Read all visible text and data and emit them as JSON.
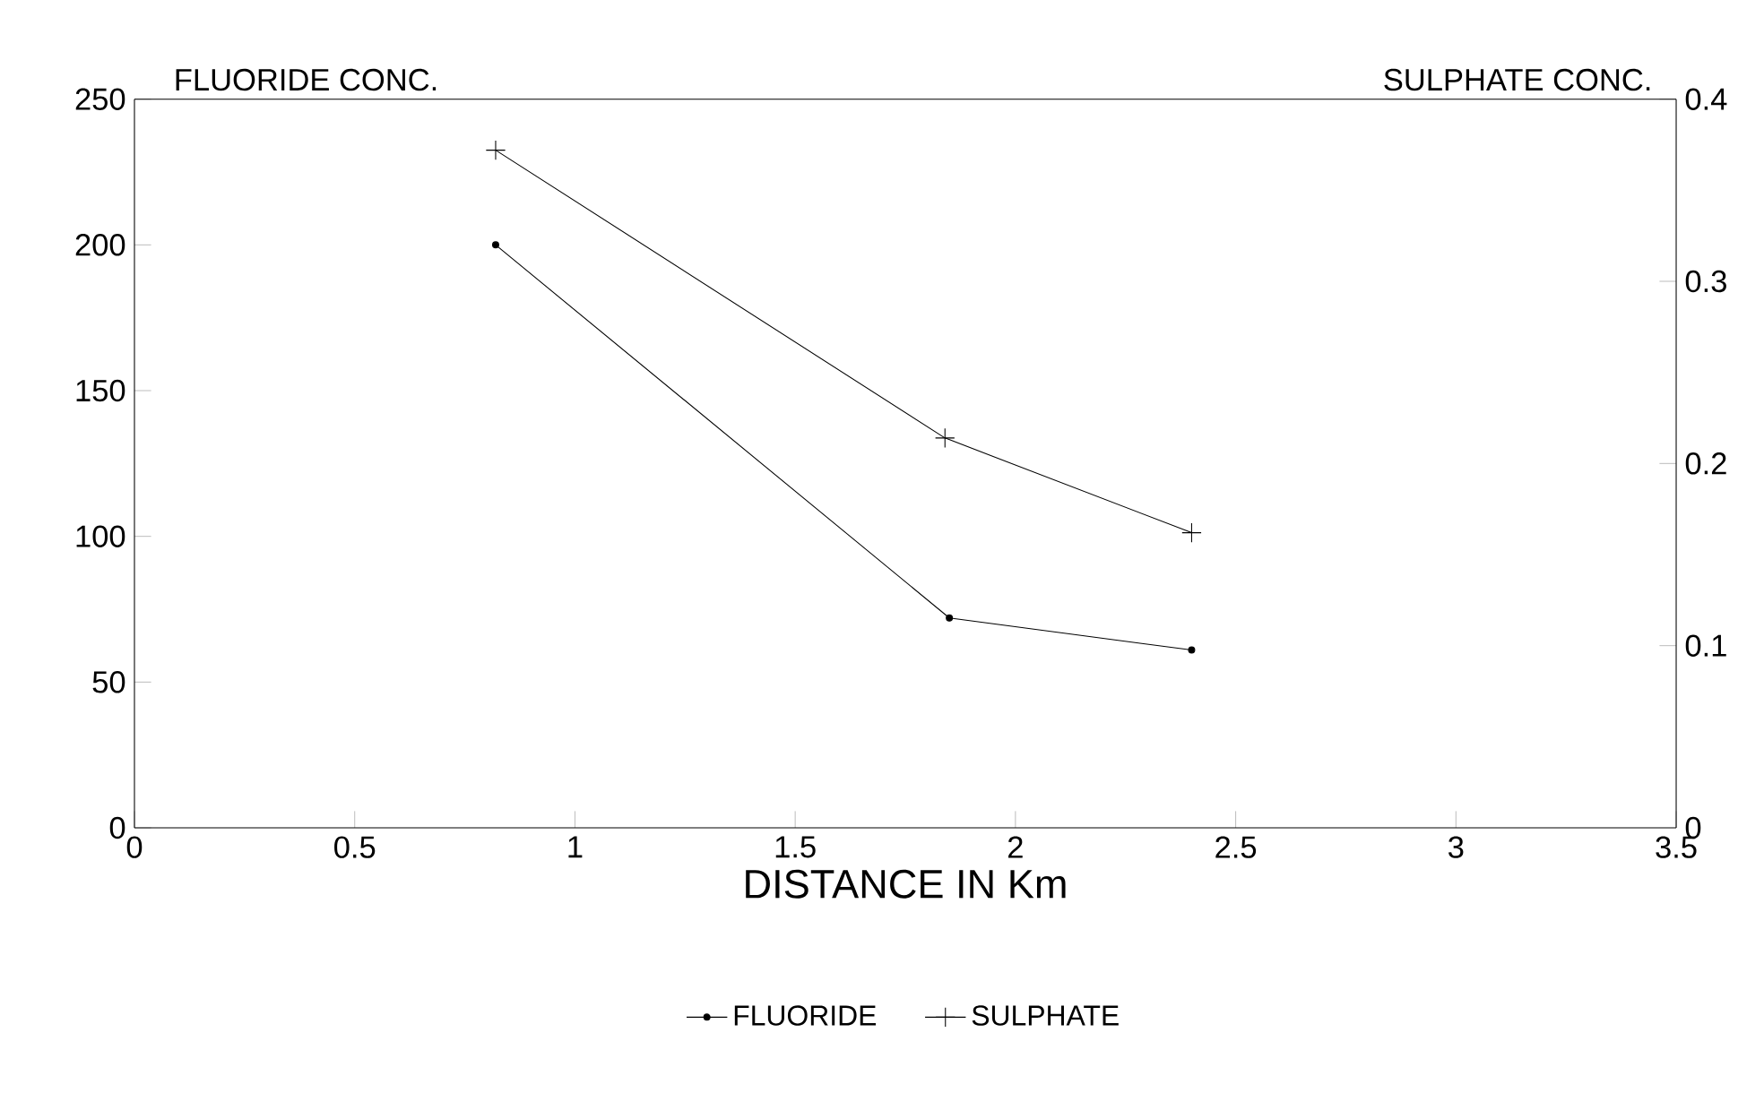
{
  "chart_data": {
    "type": "line",
    "xlabel": "DISTANCE IN Km",
    "ylabel": "FLUORIDE CONC.",
    "y2label": "SULPHATE CONC.",
    "xlim": [
      0,
      3.5
    ],
    "xticks": [
      0,
      0.5,
      1,
      1.5,
      2,
      2.5,
      3,
      3.5
    ],
    "ylim": [
      0,
      250
    ],
    "yticks": [
      0,
      50,
      100,
      150,
      200,
      250
    ],
    "y2lim": [
      0,
      0.4
    ],
    "y2ticks": [
      0,
      0.1,
      0.2,
      0.3,
      0.4
    ],
    "grid": false,
    "legend": "bottom",
    "line_style": "solid",
    "series": [
      {
        "name": "FLUORIDE",
        "color": "#000000",
        "marker": "circle",
        "axis": "y",
        "x": [
          0.82,
          1.85,
          2.4
        ],
        "values": [
          200,
          72,
          61
        ]
      },
      {
        "name": "SULPHATE",
        "color": "#000000",
        "marker": "cross",
        "axis": "y2",
        "x": [
          0.82,
          1.84,
          2.4
        ],
        "values": [
          0.372,
          0.214,
          0.162
        ]
      }
    ]
  }
}
